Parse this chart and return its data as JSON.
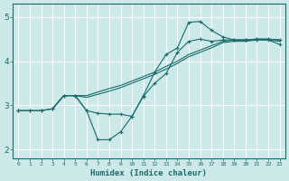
{
  "xlabel": "Humidex (Indice chaleur)",
  "xlim": [
    -0.5,
    23.5
  ],
  "ylim": [
    1.8,
    5.3
  ],
  "yticks": [
    2,
    3,
    4,
    5
  ],
  "xticks": [
    0,
    1,
    2,
    3,
    4,
    5,
    6,
    7,
    8,
    9,
    10,
    11,
    12,
    13,
    14,
    15,
    16,
    17,
    18,
    19,
    20,
    21,
    22,
    23
  ],
  "background_color": "#cce8e8",
  "line_color": "#1a6b6b",
  "grid_color": "#ffffff",
  "lines": [
    {
      "x": [
        0,
        1,
        2,
        3,
        4,
        5,
        6,
        7,
        8,
        9,
        10,
        11,
        12,
        13,
        14,
        15,
        16,
        17,
        18,
        19,
        20,
        21,
        22,
        23
      ],
      "y": [
        2.88,
        2.88,
        2.88,
        2.92,
        3.22,
        3.22,
        2.88,
        2.82,
        2.8,
        2.8,
        2.75,
        3.2,
        3.5,
        3.72,
        4.2,
        4.45,
        4.5,
        4.45,
        4.48,
        4.48,
        4.48,
        4.5,
        4.5,
        4.48
      ],
      "marker": true
    },
    {
      "x": [
        0,
        1,
        2,
        3,
        4,
        5,
        6,
        7,
        8,
        9,
        10,
        11,
        12,
        13,
        14,
        15,
        16,
        17,
        18,
        19,
        20,
        21,
        22,
        23
      ],
      "y": [
        2.88,
        2.88,
        2.88,
        2.92,
        3.22,
        3.22,
        2.88,
        2.22,
        2.22,
        2.4,
        2.75,
        3.22,
        3.75,
        4.15,
        4.3,
        4.88,
        4.9,
        4.7,
        4.55,
        4.48,
        4.48,
        4.48,
        4.48,
        4.38
      ],
      "marker": true
    },
    {
      "x": [
        3,
        4,
        5,
        6,
        7,
        8,
        9,
        10,
        11,
        12,
        13,
        14,
        15,
        16,
        17,
        18,
        19,
        20,
        21,
        22,
        23
      ],
      "y": [
        2.92,
        3.22,
        3.22,
        3.22,
        3.3,
        3.38,
        3.45,
        3.55,
        3.65,
        3.75,
        3.88,
        4.0,
        4.15,
        4.25,
        4.35,
        4.45,
        4.48,
        4.48,
        4.5,
        4.5,
        4.48
      ],
      "marker": false
    },
    {
      "x": [
        3,
        4,
        5,
        6,
        7,
        8,
        9,
        10,
        11,
        12,
        13,
        14,
        15,
        16,
        17,
        18,
        19,
        20,
        21,
        22,
        23
      ],
      "y": [
        2.92,
        3.22,
        3.22,
        3.18,
        3.25,
        3.32,
        3.4,
        3.5,
        3.6,
        3.7,
        3.82,
        3.95,
        4.1,
        4.2,
        4.3,
        4.42,
        4.45,
        4.45,
        4.48,
        4.48,
        4.45
      ],
      "marker": false
    }
  ],
  "xlabel_fontsize": 6.5,
  "xlabel_fontweight": "bold",
  "xtick_fontsize": 4.5,
  "ytick_fontsize": 6.5
}
